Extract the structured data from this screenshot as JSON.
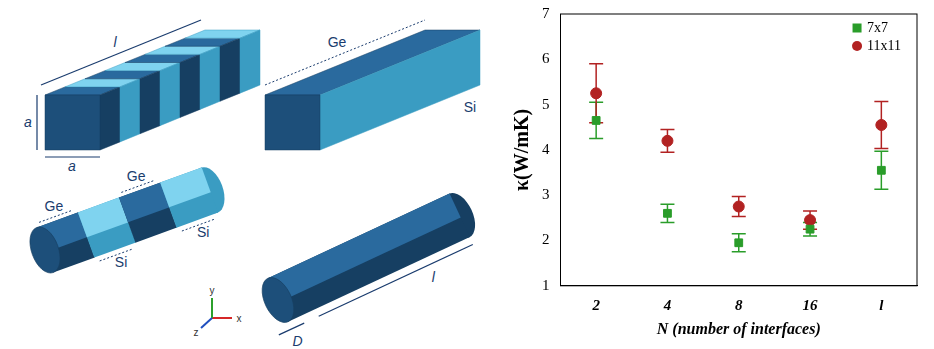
{
  "chart_data": {
    "type": "scatter",
    "x_label": "N (number of interfaces)",
    "y_label": "κ(W/mK)",
    "categories": [
      "2",
      "4",
      "8",
      "16",
      "l"
    ],
    "series": [
      {
        "name": "7x7",
        "color": "#2a9d2a",
        "marker": "square",
        "values": [
          4.65,
          2.6,
          1.95,
          2.25,
          3.55
        ],
        "errors": [
          0.4,
          0.2,
          0.2,
          0.15,
          0.42
        ]
      },
      {
        "name": "11x11",
        "color": "#b22222",
        "marker": "circle",
        "values": [
          5.25,
          4.2,
          2.75,
          2.45,
          4.55
        ],
        "errors": [
          0.65,
          0.25,
          0.22,
          0.2,
          0.52
        ]
      }
    ],
    "ylim": [
      1,
      7
    ],
    "yticks": [
      1,
      2,
      3,
      4,
      5,
      6,
      7
    ],
    "grid": false,
    "legend": "upper right"
  },
  "diagram": {
    "panels": [
      {
        "length": "l",
        "height": "a",
        "width": "a"
      },
      {
        "top": "Ge",
        "side": "Si"
      },
      {
        "segments": [
          "Ge",
          "Si",
          "Ge",
          "Si"
        ]
      },
      {
        "diameter": "D",
        "length": "l"
      }
    ],
    "axes": [
      "x",
      "y",
      "z"
    ]
  }
}
